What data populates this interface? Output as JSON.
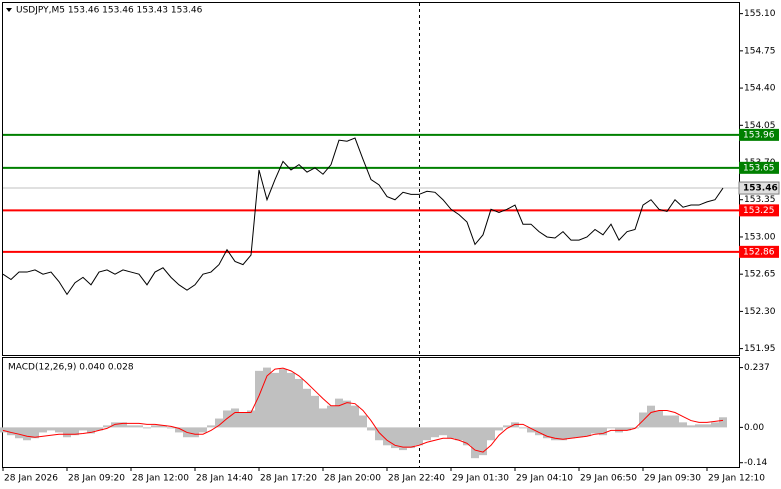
{
  "chart_data": [
    {
      "type": "line",
      "title": "USDJPY,M5  153.46 153.46 153.43 153.46",
      "categories": [
        "28 Jan 2026",
        null,
        null,
        null,
        null,
        null,
        null,
        null,
        "28 Jan 09:20",
        null,
        null,
        null,
        null,
        null,
        null,
        null,
        "28 Jan 12:00",
        null,
        null,
        null,
        null,
        null,
        null,
        null,
        "28 Jan 14:40",
        null,
        null,
        null,
        null,
        null,
        null,
        null,
        "28 Jan 17:20",
        null,
        null,
        null,
        null,
        null,
        null,
        null,
        "28 Jan 20:00",
        null,
        null,
        null,
        null,
        null,
        null,
        null,
        "28 Jan 22:40",
        null,
        null,
        null,
        null,
        null,
        null,
        null,
        "29 Jan 01:30",
        null,
        null,
        null,
        null,
        null,
        null,
        null,
        "29 Jan 04:10",
        null,
        null,
        null,
        null,
        null,
        null,
        null,
        "29 Jan 06:50",
        null,
        null,
        null,
        null,
        null,
        null,
        null,
        "29 Jan 09:30",
        null,
        null,
        null,
        null,
        null,
        null,
        null,
        "29 Jan 12:10",
        null,
        null
      ],
      "values": [
        152.65,
        152.6,
        152.67,
        152.67,
        152.69,
        152.65,
        152.67,
        152.58,
        152.46,
        152.57,
        152.62,
        152.55,
        152.67,
        152.69,
        152.65,
        152.69,
        152.67,
        152.65,
        152.55,
        152.67,
        152.71,
        152.62,
        152.55,
        152.5,
        152.55,
        152.65,
        152.67,
        152.74,
        152.88,
        152.77,
        152.74,
        152.83,
        153.63,
        153.35,
        153.54,
        153.71,
        153.63,
        153.68,
        153.61,
        153.65,
        153.59,
        153.68,
        153.91,
        153.9,
        153.93,
        153.73,
        153.54,
        153.49,
        153.38,
        153.35,
        153.42,
        153.4,
        153.4,
        153.43,
        153.42,
        153.35,
        153.26,
        153.21,
        153.14,
        152.93,
        153.02,
        153.26,
        153.23,
        153.26,
        153.3,
        153.12,
        153.12,
        153.05,
        153.0,
        152.99,
        153.05,
        152.97,
        152.97,
        153.0,
        153.07,
        153.02,
        153.12,
        152.97,
        153.05,
        153.07,
        153.3,
        153.35,
        153.26,
        153.24,
        153.35,
        153.28,
        153.3,
        153.3,
        153.33,
        153.35,
        153.46
      ],
      "color": "#000000",
      "ylim": [
        151.89,
        155.2
      ],
      "yticks": [
        {
          "value": 155.1,
          "label": "155.10"
        },
        154.75,
        {
          "value": 154.4,
          "label": "154.40"
        },
        154.05,
        {
          "value": 153.7,
          "label": "153.70"
        },
        153.35,
        {
          "value": 153.0,
          "label": "153.00"
        },
        152.65,
        {
          "value": 152.3,
          "label": "152.30"
        },
        151.95
      ],
      "levels": [
        {
          "value": 153.96,
          "color": "#008000"
        },
        {
          "value": 153.65,
          "color": "#008000"
        },
        {
          "value": 153.25,
          "color": "#ff0000"
        },
        {
          "value": 152.86,
          "color": "#ff0000"
        }
      ],
      "bid": 153.46
    },
    {
      "type": "macd",
      "title": "MACD(12,26,9) 0.040 0.028",
      "histogram": [
        -0.02,
        -0.031,
        -0.043,
        -0.051,
        -0.043,
        -0.02,
        -0.012,
        -0.02,
        -0.039,
        -0.031,
        -0.012,
        -0.024,
        -0.012,
        0.008,
        0.02,
        0.02,
        0.008,
        0.008,
        -0.004,
        0.008,
        0.008,
        -0.004,
        -0.02,
        -0.039,
        -0.039,
        -0.02,
        0.008,
        0.035,
        0.067,
        0.075,
        0.059,
        0.067,
        0.224,
        0.237,
        0.216,
        0.231,
        0.216,
        0.192,
        0.153,
        0.125,
        0.075,
        0.086,
        0.114,
        0.106,
        0.086,
        0.047,
        -0.012,
        -0.051,
        -0.071,
        -0.082,
        -0.09,
        -0.082,
        -0.071,
        -0.051,
        -0.039,
        -0.031,
        -0.043,
        -0.051,
        -0.071,
        -0.122,
        -0.11,
        -0.051,
        -0.012,
        0.008,
        0.02,
        -0.004,
        -0.02,
        -0.031,
        -0.043,
        -0.051,
        -0.051,
        -0.043,
        -0.039,
        -0.035,
        -0.024,
        -0.031,
        -0.004,
        -0.02,
        -0.012,
        -0.004,
        0.059,
        0.086,
        0.067,
        0.047,
        0.047,
        0.02,
        0.008,
        0.012,
        0.012,
        0.02,
        0.04
      ],
      "signal": [
        -0.012,
        -0.02,
        -0.027,
        -0.035,
        -0.039,
        -0.035,
        -0.031,
        -0.027,
        -0.027,
        -0.027,
        -0.024,
        -0.02,
        -0.012,
        -0.004,
        0.012,
        0.016,
        0.016,
        0.016,
        0.012,
        0.012,
        0.008,
        0.004,
        -0.004,
        -0.02,
        -0.027,
        -0.027,
        -0.012,
        0.008,
        0.035,
        0.059,
        0.059,
        0.059,
        0.125,
        0.204,
        0.231,
        0.235,
        0.224,
        0.204,
        0.176,
        0.145,
        0.114,
        0.086,
        0.086,
        0.098,
        0.094,
        0.067,
        0.027,
        -0.02,
        -0.051,
        -0.071,
        -0.078,
        -0.078,
        -0.071,
        -0.059,
        -0.051,
        -0.043,
        -0.043,
        -0.051,
        -0.063,
        -0.09,
        -0.098,
        -0.071,
        -0.031,
        -0.004,
        0.012,
        0.012,
        -0.004,
        -0.02,
        -0.035,
        -0.043,
        -0.047,
        -0.043,
        -0.039,
        -0.035,
        -0.027,
        -0.024,
        -0.012,
        -0.012,
        -0.012,
        -0.004,
        0.027,
        0.059,
        0.067,
        0.067,
        0.059,
        0.043,
        0.027,
        0.02,
        0.02,
        0.024,
        0.028
      ],
      "hist_color": "#c0c0c0",
      "signal_color": "#ff0000",
      "ylim": [
        -0.157,
        0.275
      ],
      "yticks": [
        0.237,
        {
          "value": 0,
          "label": "0.00"
        },
        -0.14
      ]
    }
  ]
}
